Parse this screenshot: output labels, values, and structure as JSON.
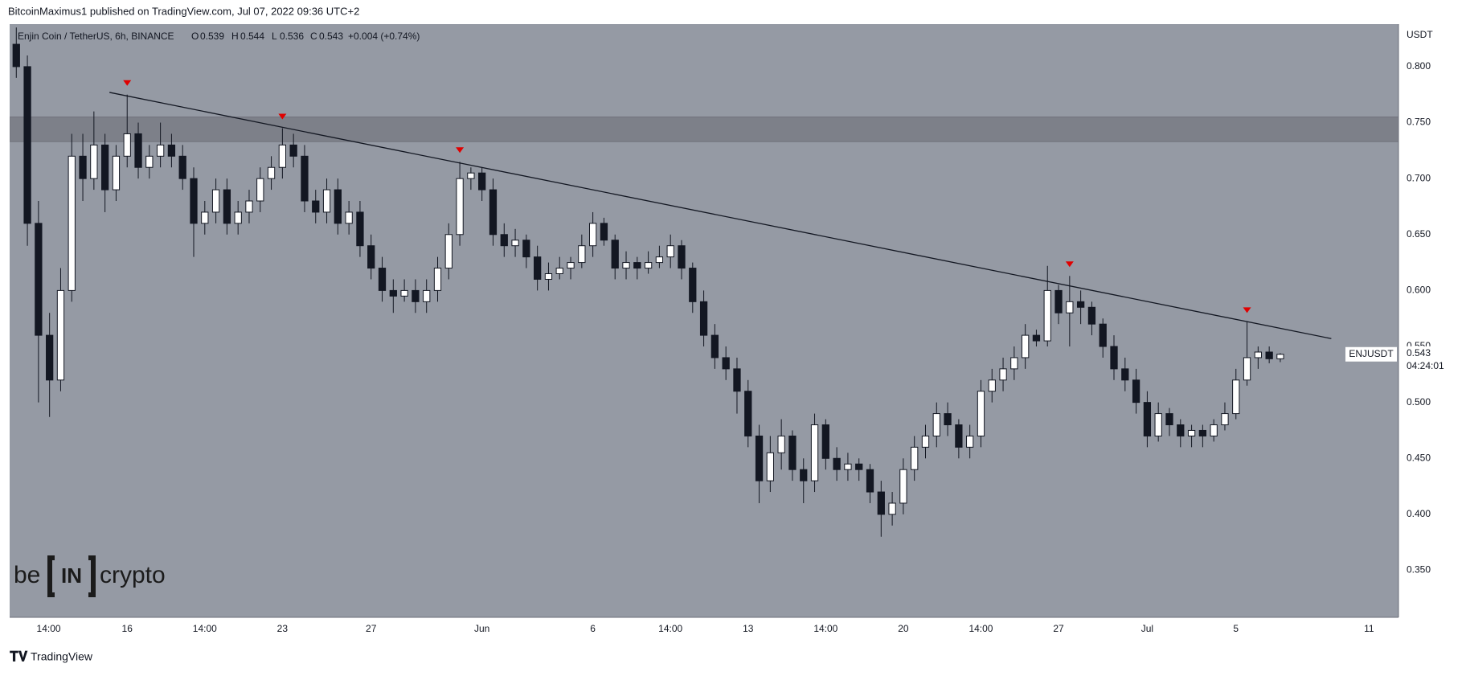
{
  "header": {
    "publisher": "BitcoinMaximus1 published on TradingView.com, Jul 07, 2022 09:36 UTC+2"
  },
  "legend": {
    "symbol": "Enjin Coin / TetherUS, 6h, BINANCE",
    "o_label": "O",
    "o": "0.539",
    "h_label": "H",
    "h": "0.544",
    "l_label": "L",
    "l": "0.536",
    "c_label": "C",
    "c": "0.543",
    "change": "+0.004 (+0.74%)"
  },
  "last_price": {
    "symbol": "ENJUSDT",
    "price": "0.543",
    "countdown": "04:24:01"
  },
  "logo": {
    "left": "be",
    "mid": "IN",
    "right": "crypto"
  },
  "footer": {
    "brand": "TradingView"
  },
  "chart_data": {
    "type": "candlestick",
    "y_axis_label": "USDT",
    "grid": false,
    "xlim": [
      -5.3,
      57.33
    ],
    "ylim": [
      0.308,
      0.838
    ],
    "xticks": [
      {
        "value": -3.54,
        "label": "14:00"
      },
      {
        "value": 0,
        "label": "16"
      },
      {
        "value": 3.5,
        "label": "14:00"
      },
      {
        "value": 7,
        "label": "23"
      },
      {
        "value": 11,
        "label": "27"
      },
      {
        "value": 16,
        "label": "Jun"
      },
      {
        "value": 21,
        "label": "6"
      },
      {
        "value": 24.5,
        "label": "14:00"
      },
      {
        "value": 28,
        "label": "13"
      },
      {
        "value": 31.5,
        "label": "14:00"
      },
      {
        "value": 35,
        "label": "20"
      },
      {
        "value": 38.5,
        "label": "14:00"
      },
      {
        "value": 42,
        "label": "27"
      },
      {
        "value": 46,
        "label": "Jul"
      },
      {
        "value": 50,
        "label": "5"
      },
      {
        "value": 56,
        "label": "11"
      }
    ],
    "yticks": [
      {
        "value": 0.35,
        "label": "0.350"
      },
      {
        "value": 0.4,
        "label": "0.400"
      },
      {
        "value": 0.45,
        "label": "0.450"
      },
      {
        "value": 0.5,
        "label": "0.500"
      },
      {
        "value": 0.55,
        "label": "0.550"
      },
      {
        "value": 0.6,
        "label": "0.600"
      },
      {
        "value": 0.65,
        "label": "0.650"
      },
      {
        "value": 0.7,
        "label": "0.700"
      },
      {
        "value": 0.75,
        "label": "0.750"
      },
      {
        "value": 0.8,
        "label": "0.800"
      }
    ],
    "zone": [
      0.733,
      0.755
    ],
    "trendline": {
      "x": [
        -0.8,
        54.3
      ],
      "y": [
        0.777,
        0.557
      ]
    },
    "marked_highs": [
      10,
      24,
      40,
      95,
      111
    ],
    "series": [
      {
        "name": "ENJUSDT",
        "up_color": "#ffffff",
        "down_color": "#131722",
        "x": [
          -5,
          -4.5,
          -4,
          -3.5,
          -3,
          -2.5,
          -2,
          -1.5,
          -1,
          -0.5,
          0,
          0.5,
          1,
          1.5,
          2,
          2.5,
          3,
          3.5,
          4,
          4.5,
          5,
          5.5,
          6,
          6.5,
          7,
          7.5,
          8,
          8.5,
          9,
          9.5,
          10,
          10.5,
          11,
          11.5,
          12,
          12.5,
          13,
          13.5,
          14,
          14.5,
          15,
          15.5,
          16,
          16.5,
          17,
          17.5,
          18,
          18.5,
          19,
          19.5,
          20,
          20.5,
          21,
          21.5,
          22,
          22.5,
          23,
          23.5,
          24,
          24.5,
          25,
          25.5,
          26,
          26.5,
          27,
          27.5,
          28,
          28.5,
          29,
          29.5,
          30,
          30.5,
          31,
          31.5,
          32,
          32.5,
          33,
          33.5,
          34,
          34.5,
          35,
          35.5,
          36,
          36.5,
          37,
          37.5,
          38,
          38.5,
          39,
          39.5,
          40,
          40.5,
          41,
          41.5,
          42,
          42.5,
          43,
          43.5,
          44,
          44.5,
          45,
          45.5,
          46,
          46.5,
          47,
          47.5,
          48,
          48.5,
          49,
          49.5,
          50,
          50.5,
          51,
          51.5,
          52
        ],
        "ohlc": [
          [
            0.82,
            0.835,
            0.79,
            0.8
          ],
          [
            0.8,
            0.81,
            0.64,
            0.66
          ],
          [
            0.66,
            0.68,
            0.5,
            0.56
          ],
          [
            0.56,
            0.58,
            0.487,
            0.52
          ],
          [
            0.52,
            0.62,
            0.51,
            0.6
          ],
          [
            0.6,
            0.74,
            0.59,
            0.72
          ],
          [
            0.72,
            0.74,
            0.68,
            0.7
          ],
          [
            0.7,
            0.76,
            0.69,
            0.73
          ],
          [
            0.73,
            0.74,
            0.67,
            0.69
          ],
          [
            0.69,
            0.73,
            0.68,
            0.72
          ],
          [
            0.72,
            0.775,
            0.71,
            0.74
          ],
          [
            0.74,
            0.75,
            0.7,
            0.71
          ],
          [
            0.71,
            0.73,
            0.7,
            0.72
          ],
          [
            0.72,
            0.75,
            0.71,
            0.73
          ],
          [
            0.73,
            0.74,
            0.71,
            0.72
          ],
          [
            0.72,
            0.73,
            0.69,
            0.7
          ],
          [
            0.7,
            0.71,
            0.63,
            0.66
          ],
          [
            0.66,
            0.68,
            0.65,
            0.67
          ],
          [
            0.67,
            0.7,
            0.66,
            0.69
          ],
          [
            0.69,
            0.7,
            0.65,
            0.66
          ],
          [
            0.66,
            0.68,
            0.65,
            0.67
          ],
          [
            0.67,
            0.69,
            0.66,
            0.68
          ],
          [
            0.68,
            0.71,
            0.67,
            0.7
          ],
          [
            0.7,
            0.72,
            0.69,
            0.71
          ],
          [
            0.71,
            0.745,
            0.7,
            0.73
          ],
          [
            0.73,
            0.74,
            0.71,
            0.72
          ],
          [
            0.72,
            0.73,
            0.67,
            0.68
          ],
          [
            0.68,
            0.69,
            0.66,
            0.67
          ],
          [
            0.67,
            0.7,
            0.66,
            0.69
          ],
          [
            0.69,
            0.7,
            0.65,
            0.66
          ],
          [
            0.66,
            0.68,
            0.65,
            0.67
          ],
          [
            0.67,
            0.68,
            0.63,
            0.64
          ],
          [
            0.64,
            0.65,
            0.61,
            0.62
          ],
          [
            0.62,
            0.63,
            0.59,
            0.6
          ],
          [
            0.6,
            0.61,
            0.58,
            0.595
          ],
          [
            0.595,
            0.61,
            0.59,
            0.6
          ],
          [
            0.6,
            0.61,
            0.58,
            0.59
          ],
          [
            0.59,
            0.61,
            0.58,
            0.6
          ],
          [
            0.6,
            0.63,
            0.59,
            0.62
          ],
          [
            0.62,
            0.66,
            0.61,
            0.65
          ],
          [
            0.65,
            0.715,
            0.64,
            0.7
          ],
          [
            0.7,
            0.71,
            0.69,
            0.705
          ],
          [
            0.705,
            0.71,
            0.68,
            0.69
          ],
          [
            0.69,
            0.7,
            0.64,
            0.65
          ],
          [
            0.65,
            0.66,
            0.63,
            0.64
          ],
          [
            0.64,
            0.655,
            0.63,
            0.645
          ],
          [
            0.645,
            0.65,
            0.62,
            0.63
          ],
          [
            0.63,
            0.64,
            0.6,
            0.61
          ],
          [
            0.61,
            0.625,
            0.6,
            0.615
          ],
          [
            0.615,
            0.63,
            0.61,
            0.62
          ],
          [
            0.62,
            0.63,
            0.61,
            0.625
          ],
          [
            0.625,
            0.65,
            0.62,
            0.64
          ],
          [
            0.64,
            0.67,
            0.63,
            0.66
          ],
          [
            0.66,
            0.665,
            0.64,
            0.645
          ],
          [
            0.645,
            0.65,
            0.61,
            0.62
          ],
          [
            0.62,
            0.635,
            0.61,
            0.625
          ],
          [
            0.625,
            0.63,
            0.61,
            0.62
          ],
          [
            0.62,
            0.635,
            0.615,
            0.625
          ],
          [
            0.625,
            0.64,
            0.62,
            0.63
          ],
          [
            0.63,
            0.65,
            0.62,
            0.64
          ],
          [
            0.64,
            0.645,
            0.61,
            0.62
          ],
          [
            0.62,
            0.625,
            0.58,
            0.59
          ],
          [
            0.59,
            0.6,
            0.55,
            0.56
          ],
          [
            0.56,
            0.57,
            0.53,
            0.54
          ],
          [
            0.54,
            0.55,
            0.52,
            0.53
          ],
          [
            0.53,
            0.54,
            0.49,
            0.51
          ],
          [
            0.51,
            0.52,
            0.46,
            0.47
          ],
          [
            0.47,
            0.48,
            0.41,
            0.43
          ],
          [
            0.43,
            0.47,
            0.42,
            0.455
          ],
          [
            0.455,
            0.485,
            0.44,
            0.47
          ],
          [
            0.47,
            0.475,
            0.43,
            0.44
          ],
          [
            0.44,
            0.45,
            0.41,
            0.43
          ],
          [
            0.43,
            0.49,
            0.42,
            0.48
          ],
          [
            0.48,
            0.485,
            0.44,
            0.45
          ],
          [
            0.45,
            0.46,
            0.43,
            0.44
          ],
          [
            0.44,
            0.455,
            0.43,
            0.445
          ],
          [
            0.445,
            0.45,
            0.43,
            0.44
          ],
          [
            0.44,
            0.445,
            0.41,
            0.42
          ],
          [
            0.42,
            0.43,
            0.38,
            0.4
          ],
          [
            0.4,
            0.42,
            0.39,
            0.41
          ],
          [
            0.41,
            0.45,
            0.4,
            0.44
          ],
          [
            0.44,
            0.47,
            0.43,
            0.46
          ],
          [
            0.46,
            0.48,
            0.45,
            0.47
          ],
          [
            0.47,
            0.5,
            0.46,
            0.49
          ],
          [
            0.49,
            0.5,
            0.47,
            0.48
          ],
          [
            0.48,
            0.485,
            0.45,
            0.46
          ],
          [
            0.46,
            0.48,
            0.45,
            0.47
          ],
          [
            0.47,
            0.52,
            0.46,
            0.51
          ],
          [
            0.51,
            0.53,
            0.5,
            0.52
          ],
          [
            0.52,
            0.54,
            0.51,
            0.53
          ],
          [
            0.53,
            0.55,
            0.52,
            0.54
          ],
          [
            0.54,
            0.57,
            0.53,
            0.56
          ],
          [
            0.56,
            0.565,
            0.55,
            0.555
          ],
          [
            0.555,
            0.622,
            0.55,
            0.6
          ],
          [
            0.6,
            0.605,
            0.57,
            0.58
          ],
          [
            0.58,
            0.613,
            0.55,
            0.59
          ],
          [
            0.59,
            0.6,
            0.57,
            0.585
          ],
          [
            0.585,
            0.59,
            0.56,
            0.57
          ],
          [
            0.57,
            0.575,
            0.54,
            0.55
          ],
          [
            0.55,
            0.56,
            0.52,
            0.53
          ],
          [
            0.53,
            0.54,
            0.51,
            0.52
          ],
          [
            0.52,
            0.53,
            0.49,
            0.5
          ],
          [
            0.5,
            0.51,
            0.46,
            0.47
          ],
          [
            0.47,
            0.5,
            0.465,
            0.49
          ],
          [
            0.49,
            0.495,
            0.47,
            0.48
          ],
          [
            0.48,
            0.485,
            0.46,
            0.47
          ],
          [
            0.47,
            0.48,
            0.46,
            0.475
          ],
          [
            0.475,
            0.48,
            0.46,
            0.47
          ],
          [
            0.47,
            0.485,
            0.465,
            0.48
          ],
          [
            0.48,
            0.5,
            0.475,
            0.49
          ],
          [
            0.49,
            0.53,
            0.485,
            0.52
          ],
          [
            0.52,
            0.572,
            0.515,
            0.54
          ],
          [
            0.54,
            0.55,
            0.53,
            0.545
          ],
          [
            0.545,
            0.55,
            0.535,
            0.539
          ],
          [
            0.539,
            0.544,
            0.536,
            0.543
          ]
        ]
      }
    ]
  }
}
